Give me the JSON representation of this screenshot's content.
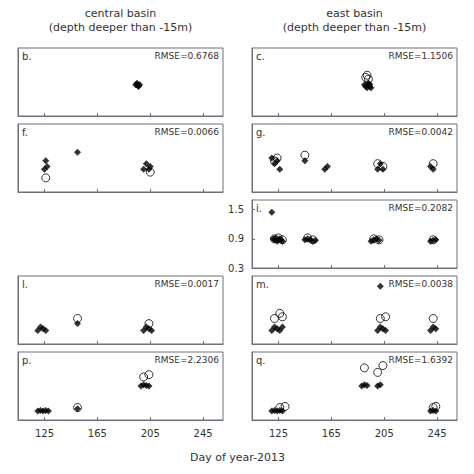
{
  "chart_data": {
    "type": "scatter",
    "xlabel": "Day of year-2013",
    "xlim": [
      105,
      260
    ],
    "xticks": [
      125,
      165,
      205,
      245
    ],
    "grid": false,
    "columns": [
      {
        "title": "central basin\n(depth deeper than -15m)",
        "panels": [
          {
            "title": "b.",
            "annotation": "RMSE=0.6768",
            "ylim": [
              0,
              1.2
            ],
            "tick_labels": false,
            "series": [
              {
                "marker": "diamond",
                "color": "black",
                "x": [
                  194,
                  195,
                  196,
                  197,
                  195,
                  196
                ],
                "values": [
                  0.55,
                  0.58,
                  0.52,
                  0.55,
                  0.56,
                  0.53
                ]
              }
            ]
          },
          {
            "title": "f.",
            "annotation": "RMSE=0.0066",
            "ylim": [
              0,
              0.12
            ],
            "tick_labels": false,
            "series": [
              {
                "marker": "diamond",
                "color": "black",
                "x": [
                  125,
                  126,
                  127,
                  150,
                  200,
                  202,
                  204,
                  205
                ],
                "values": [
                  0.04,
                  0.055,
                  0.045,
                  0.07,
                  0.04,
                  0.05,
                  0.04,
                  0.045
                ]
              },
              {
                "marker": "circle_open",
                "color": "black",
                "x": [
                  126,
                  205
                ],
                "values": [
                  0.025,
                  0.035
                ]
              }
            ]
          },
          null,
          {
            "title": "l.",
            "annotation": "RMSE=0.0017",
            "ylim": [
              0,
              0.04
            ],
            "tick_labels": false,
            "series": [
              {
                "marker": "diamond",
                "color": "black",
                "x": [
                  120,
                  122,
                  124,
                  126,
                  150,
                  200,
                  202,
                  204,
                  206
                ],
                "values": [
                  0.008,
                  0.01,
                  0.009,
                  0.008,
                  0.012,
                  0.008,
                  0.01,
                  0.009,
                  0.008
                ]
              },
              {
                "marker": "circle_open",
                "color": "black",
                "x": [
                  150,
                  204
                ],
                "values": [
                  0.015,
                  0.012
                ]
              }
            ]
          },
          {
            "title": "p.",
            "annotation": "RMSE=2.2306",
            "ylim": [
              0,
              3.0
            ],
            "tick_labels": "x",
            "series": [
              {
                "marker": "diamond",
                "color": "black",
                "x": [
                  120,
                  122,
                  124,
                  126,
                  128,
                  150,
                  198,
                  200,
                  202,
                  204
                ],
                "values": [
                  0.4,
                  0.42,
                  0.4,
                  0.42,
                  0.4,
                  0.5,
                  1.5,
                  1.55,
                  1.52,
                  1.5
                ]
              },
              {
                "marker": "circle_open",
                "color": "black",
                "x": [
                  150,
                  200,
                  204
                ],
                "values": [
                  0.55,
                  1.9,
                  2.0
                ]
              }
            ]
          }
        ]
      },
      {
        "title": "east basin\n(depth deeper than -15m)",
        "panels": [
          {
            "title": "c.",
            "annotation": "RMSE=1.1506",
            "ylim": [
              0,
              1.2
            ],
            "tick_labels": false,
            "series": [
              {
                "marker": "diamond",
                "color": "black",
                "x": [
                  190,
                  191,
                  192,
                  193,
                  194,
                  195,
                  193,
                  194
                ],
                "values": [
                  0.55,
                  0.52,
                  0.5,
                  0.55,
                  0.52,
                  0.5,
                  0.58,
                  0.56
                ]
              },
              {
                "marker": "circle_open",
                "color": "black",
                "x": [
                  191,
                  192,
                  193
                ],
                "values": [
                  0.68,
                  0.72,
                  0.65
                ]
              }
            ]
          },
          {
            "title": "g.",
            "annotation": "RMSE=0.0042",
            "ylim": [
              0,
              0.12
            ],
            "tick_labels": false,
            "series": [
              {
                "marker": "diamond",
                "color": "black",
                "x": [
                  120,
                  122,
                  124,
                  126,
                  145,
                  160,
                  162,
                  200,
                  202,
                  204,
                  240,
                  242
                ],
                "values": [
                  0.06,
                  0.05,
                  0.055,
                  0.04,
                  0.055,
                  0.04,
                  0.045,
                  0.04,
                  0.05,
                  0.04,
                  0.045,
                  0.04
                ]
              },
              {
                "marker": "circle_open",
                "color": "black",
                "x": [
                  122,
                  124,
                  145,
                  200,
                  204,
                  242
                ],
                "values": [
                  0.055,
                  0.06,
                  0.065,
                  0.05,
                  0.045,
                  0.05
                ]
              }
            ]
          },
          {
            "title": "i.",
            "annotation": "RMSE=0.2082",
            "ylim": [
              0.3,
              1.7
            ],
            "yticks": [
              0.3,
              0.9,
              1.5
            ],
            "tick_labels": "y",
            "series": [
              {
                "marker": "diamond",
                "color": "black",
                "x": [
                  120,
                  121,
                  122,
                  123,
                  124,
                  125,
                  126,
                  127,
                  128,
                  145,
                  147,
                  149,
                  151,
                  153,
                  195,
                  197,
                  199,
                  201,
                  240,
                  242,
                  244
                ],
                "values": [
                  1.45,
                  0.9,
                  0.88,
                  0.92,
                  0.85,
                  0.87,
                  0.9,
                  0.88,
                  0.85,
                  0.88,
                  0.9,
                  0.88,
                  0.85,
                  0.87,
                  0.85,
                  0.88,
                  0.9,
                  0.87,
                  0.85,
                  0.87,
                  0.88
                ]
              },
              {
                "marker": "circle_open",
                "color": "black",
                "x": [
                  122,
                  125,
                  128,
                  147,
                  151,
                  197,
                  201,
                  242
                ],
                "values": [
                  0.9,
                  0.92,
                  0.88,
                  0.92,
                  0.88,
                  0.9,
                  0.88,
                  0.88
                ]
              }
            ]
          },
          {
            "title": "m.",
            "annotation": "RMSE=0.0038",
            "ylim": [
              0,
              0.04
            ],
            "tick_labels": false,
            "series": [
              {
                "marker": "diamond",
                "color": "black",
                "x": [
                  120,
                  122,
                  124,
                  126,
                  128,
                  200,
                  202,
                  204,
                  206,
                  240,
                  242,
                  244
                ],
                "values": [
                  0.008,
                  0.01,
                  0.009,
                  0.008,
                  0.01,
                  0.008,
                  0.01,
                  0.009,
                  0.008,
                  0.008,
                  0.01,
                  0.009
                ]
              },
              {
                "marker": "diamond",
                "color": "black",
                "x": [
                  202
                ],
                "values": [
                  0.034
                ]
              },
              {
                "marker": "circle_open",
                "color": "black",
                "x": [
                  122,
                  126,
                  128,
                  202,
                  206,
                  242
                ],
                "values": [
                  0.015,
                  0.018,
                  0.016,
                  0.015,
                  0.016,
                  0.015
                ]
              }
            ]
          },
          {
            "title": "q.",
            "annotation": "RMSE=1.6392",
            "ylim": [
              0,
              3.0
            ],
            "tick_labels": "x",
            "series": [
              {
                "marker": "diamond",
                "color": "black",
                "x": [
                  120,
                  122,
                  124,
                  126,
                  128,
                  188,
                  190,
                  192,
                  200,
                  202,
                  240,
                  242,
                  244
                ],
                "values": [
                  0.4,
                  0.42,
                  0.4,
                  0.42,
                  0.4,
                  1.5,
                  1.55,
                  1.52,
                  1.5,
                  1.55,
                  0.4,
                  0.42,
                  0.4
                ]
              },
              {
                "marker": "circle_open",
                "color": "black",
                "x": [
                  126,
                  130,
                  190,
                  200,
                  204,
                  242,
                  244
                ],
                "values": [
                  0.55,
                  0.6,
                  2.3,
                  2.1,
                  2.4,
                  0.55,
                  0.6
                ]
              }
            ]
          }
        ]
      }
    ]
  }
}
